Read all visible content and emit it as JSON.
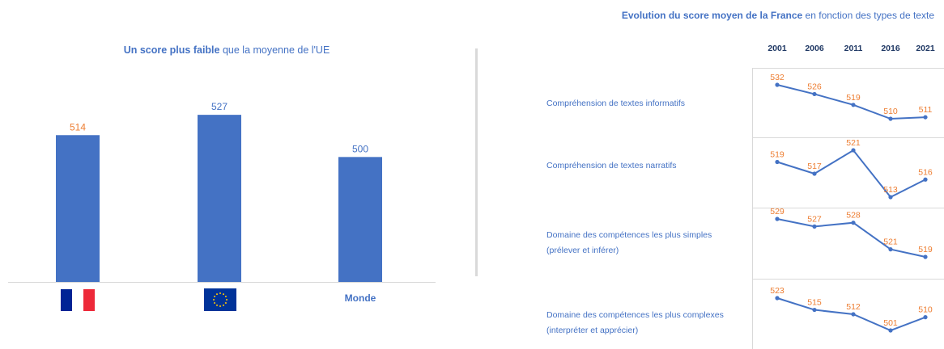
{
  "left_chart": {
    "title_bold": "Un score plus faible",
    "title_rest": " que la moyenne de l'UE",
    "monde_label": "Monde"
  },
  "right_chart": {
    "title_bold": "Evolution du score moyen de la France",
    "title_rest": " en fonction des types de texte"
  },
  "colors": {
    "bar": "#4472c4",
    "value_label": "#ed7d31",
    "text_blue": "#4472c4",
    "france_blue": "#002395",
    "france_red": "#ed2939",
    "eu_blue": "#003399",
    "eu_stars": "#ffcc00"
  },
  "chart_data": [
    {
      "type": "bar",
      "title": "Un score plus faible que la moyenne de l'UE",
      "categories": [
        "France",
        "UE",
        "Monde"
      ],
      "category_display": [
        "france-flag-icon",
        "eu-flag-icon",
        "Monde"
      ],
      "values": [
        514,
        527,
        500
      ],
      "ylim": [
        420,
        540
      ]
    },
    {
      "type": "line",
      "title": "Evolution du score moyen de la France en fonction des types de texte",
      "x": [
        "2001",
        "2006",
        "2011",
        "2016",
        "2021"
      ],
      "series": [
        {
          "name": "Compréhension de textes informatifs",
          "values": [
            532,
            526,
            519,
            510,
            511
          ]
        },
        {
          "name": "Compréhension de textes narratifs",
          "values": [
            519,
            517,
            521,
            513,
            516
          ]
        },
        {
          "name": "Domaine des compétences les plus simples (prélever et inférer)",
          "values": [
            529,
            527,
            528,
            521,
            519
          ]
        },
        {
          "name": "Domaine des compétences les plus complexes (interpréter et apprécier)",
          "values": [
            523,
            515,
            512,
            501,
            510
          ]
        }
      ],
      "row_labels": [
        [
          "Compréhension de textes informatifs"
        ],
        [
          "Compréhension de textes narratifs"
        ],
        [
          "Domaine des compétences les plus simples",
          "(prélever et inférer)"
        ],
        [
          "Domaine des compétences les plus complexes",
          "(interpréter et apprécier)"
        ]
      ]
    }
  ]
}
